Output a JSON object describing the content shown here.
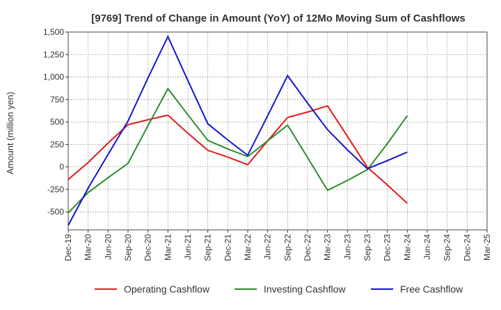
{
  "chart_data": {
    "type": "line",
    "title": "[9769]  Trend of Change in Amount (YoY) of 12Mo Moving Sum of Cashflows",
    "xlabel": "",
    "ylabel": "Amount (million yen)",
    "ylim": [
      -700,
      1500
    ],
    "yticks": [
      1500,
      1250,
      1000,
      750,
      500,
      250,
      0,
      -250,
      -500
    ],
    "ytick_labels": [
      "1,500",
      "1,250",
      "1,000",
      "750",
      "500",
      "250",
      "0",
      "-250",
      "-500"
    ],
    "categories": [
      "Dec-19",
      "Mar-20",
      "Jun-20",
      "Sep-20",
      "Dec-20",
      "Mar-21",
      "Jun-21",
      "Sep-21",
      "Dec-21",
      "Mar-22",
      "Jun-22",
      "Sep-22",
      "Dec-22",
      "Mar-23",
      "Jun-23",
      "Sep-23",
      "Dec-23",
      "Mar-24",
      "Jun-24",
      "Sep-24",
      "Dec-24",
      "Mar-25"
    ],
    "grid": true,
    "legend_position": "bottom",
    "series": [
      {
        "name": "Operating Cashflow",
        "color": "#e41a1c",
        "values": [
          -140,
          50,
          265,
          470,
          525,
          575,
          375,
          185,
          110,
          25,
          290,
          550,
          610,
          680,
          340,
          -5,
          -200,
          -405,
          null,
          null,
          null,
          null
        ]
      },
      {
        "name": "Investing Cashflow",
        "color": "#2e8b2e",
        "values": [
          -510,
          -285,
          -120,
          40,
          460,
          870,
          580,
          295,
          200,
          115,
          290,
          465,
          105,
          -260,
          -150,
          -30,
          260,
          570,
          null,
          null,
          null,
          null
        ]
      },
      {
        "name": "Free Cashflow",
        "color": "#1414d2",
        "values": [
          -650,
          -235,
          140,
          510,
          990,
          1450,
          960,
          480,
          300,
          130,
          570,
          1015,
          710,
          415,
          190,
          -20,
          70,
          165,
          null,
          null,
          null,
          null
        ]
      }
    ]
  }
}
